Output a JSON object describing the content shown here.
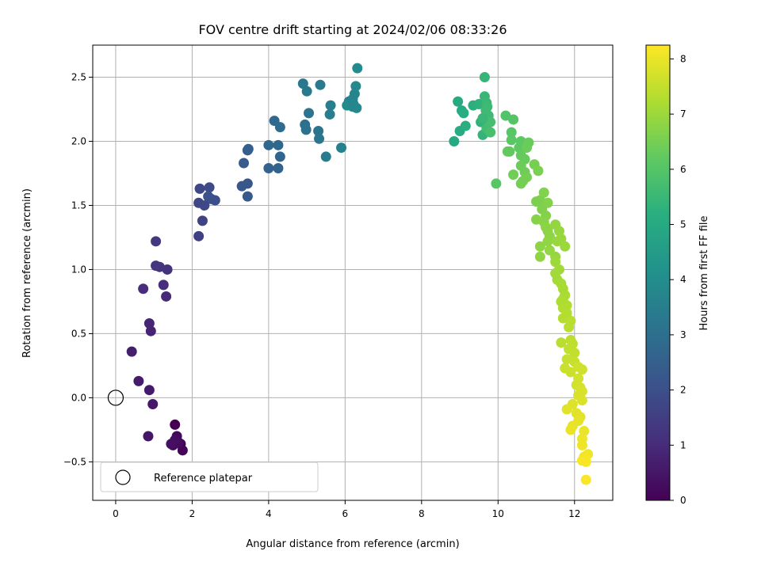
{
  "chart_data": {
    "type": "scatter",
    "title": "FOV centre drift starting at 2024/02/06 08:33:26",
    "xlabel": "Angular distance from reference (arcmin)",
    "ylabel": "Rotation from reference (arcmin)",
    "xlim": [
      -0.6,
      13.0
    ],
    "ylim": [
      -0.8,
      2.75
    ],
    "xticks": [
      0,
      2,
      4,
      6,
      8,
      10,
      12
    ],
    "yticks": [
      -0.5,
      0.0,
      0.5,
      1.0,
      1.5,
      2.0,
      2.5
    ],
    "xtick_labels": [
      "0",
      "2",
      "4",
      "6",
      "8",
      "10",
      "12"
    ],
    "ytick_labels": [
      "−0.5",
      "0.0",
      "0.5",
      "1.0",
      "1.5",
      "2.0",
      "2.5"
    ],
    "grid": true,
    "colormap": "viridis",
    "colorbar": {
      "label": "Hours from first FF file",
      "range": [
        0,
        8.25
      ],
      "ticks": [
        0,
        1,
        2,
        3,
        4,
        5,
        6,
        7,
        8
      ],
      "tick_labels": [
        "0",
        "1",
        "2",
        "3",
        "4",
        "5",
        "6",
        "7",
        "8"
      ]
    },
    "reference": {
      "name": "Reference platepar",
      "x": 0,
      "y": 0
    },
    "legend": {
      "position": "lower-left",
      "entries": [
        "Reference platepar"
      ]
    },
    "points": [
      [
        1.55,
        -0.21,
        0.0
      ],
      [
        1.7,
        -0.36,
        0.05
      ],
      [
        1.75,
        -0.41,
        0.1
      ],
      [
        1.5,
        -0.37,
        0.15
      ],
      [
        1.6,
        -0.3,
        0.2
      ],
      [
        1.65,
        -0.35,
        0.25
      ],
      [
        1.55,
        -0.33,
        0.3
      ],
      [
        1.45,
        -0.36,
        0.35
      ],
      [
        0.85,
        -0.3,
        0.5
      ],
      [
        0.97,
        -0.05,
        0.55
      ],
      [
        0.88,
        0.06,
        0.6
      ],
      [
        0.6,
        0.13,
        0.65
      ],
      [
        0.42,
        0.36,
        0.7
      ],
      [
        0.92,
        0.52,
        0.85
      ],
      [
        0.88,
        0.58,
        0.9
      ],
      [
        1.32,
        0.79,
        1.0
      ],
      [
        0.72,
        0.85,
        1.05
      ],
      [
        1.25,
        0.88,
        1.1
      ],
      [
        1.35,
        1.0,
        1.2
      ],
      [
        1.15,
        1.02,
        1.25
      ],
      [
        1.05,
        1.03,
        1.3
      ],
      [
        1.05,
        1.22,
        1.4
      ],
      [
        2.17,
        1.26,
        1.55
      ],
      [
        2.27,
        1.38,
        1.65
      ],
      [
        2.17,
        1.52,
        1.75
      ],
      [
        2.32,
        1.5,
        1.8
      ],
      [
        2.2,
        1.63,
        1.85
      ],
      [
        2.45,
        1.64,
        1.9
      ],
      [
        2.5,
        1.55,
        1.95
      ],
      [
        2.6,
        1.54,
        2.0
      ],
      [
        2.42,
        1.57,
        2.05
      ],
      [
        3.3,
        1.65,
        2.25
      ],
      [
        3.45,
        1.67,
        2.3
      ],
      [
        3.45,
        1.57,
        2.35
      ],
      [
        3.35,
        1.83,
        2.4
      ],
      [
        3.45,
        1.93,
        2.45
      ],
      [
        3.47,
        1.94,
        2.5
      ],
      [
        4.0,
        1.79,
        2.6
      ],
      [
        4.25,
        1.79,
        2.65
      ],
      [
        4.3,
        1.88,
        2.7
      ],
      [
        4.0,
        1.97,
        2.75
      ],
      [
        4.25,
        1.97,
        2.8
      ],
      [
        4.15,
        2.16,
        2.85
      ],
      [
        4.3,
        2.11,
        2.9
      ],
      [
        4.95,
        2.13,
        3.05
      ],
      [
        4.98,
        2.09,
        3.1
      ],
      [
        5.05,
        2.22,
        3.15
      ],
      [
        5.3,
        2.08,
        3.2
      ],
      [
        5.32,
        2.02,
        3.25
      ],
      [
        4.9,
        2.45,
        3.3
      ],
      [
        5.0,
        2.39,
        3.35
      ],
      [
        5.35,
        2.44,
        3.4
      ],
      [
        5.5,
        1.88,
        3.45
      ],
      [
        5.6,
        2.21,
        3.5
      ],
      [
        5.62,
        2.28,
        3.55
      ],
      [
        5.9,
        1.95,
        3.6
      ],
      [
        6.1,
        2.31,
        3.65
      ],
      [
        6.15,
        2.3,
        3.7
      ],
      [
        6.2,
        2.27,
        3.75
      ],
      [
        6.25,
        2.37,
        3.8
      ],
      [
        6.3,
        2.26,
        3.85
      ],
      [
        6.28,
        2.43,
        3.9
      ],
      [
        6.32,
        2.57,
        3.95
      ],
      [
        6.05,
        2.28,
        4.0
      ],
      [
        6.2,
        2.33,
        3.72
      ],
      [
        6.22,
        2.29,
        3.78
      ],
      [
        8.85,
        2.0,
        5.0
      ],
      [
        8.95,
        2.31,
        5.05
      ],
      [
        9.0,
        2.08,
        5.1
      ],
      [
        9.05,
        2.24,
        5.12
      ],
      [
        9.1,
        2.22,
        5.15
      ],
      [
        9.15,
        2.12,
        5.2
      ],
      [
        9.35,
        2.28,
        5.25
      ],
      [
        9.5,
        2.29,
        5.3
      ],
      [
        9.55,
        2.15,
        5.35
      ],
      [
        9.6,
        2.05,
        5.4
      ],
      [
        9.65,
        2.5,
        5.45
      ],
      [
        9.65,
        2.35,
        5.5
      ],
      [
        9.7,
        2.3,
        5.55
      ],
      [
        9.72,
        2.27,
        5.6
      ],
      [
        9.75,
        2.2,
        5.65
      ],
      [
        9.7,
        2.1,
        5.7
      ],
      [
        9.8,
        2.15,
        5.75
      ],
      [
        9.8,
        2.07,
        5.8
      ],
      [
        9.68,
        2.24,
        5.62
      ],
      [
        9.6,
        2.18,
        5.52
      ],
      [
        10.2,
        2.2,
        6.0
      ],
      [
        10.4,
        2.17,
        6.05
      ],
      [
        10.35,
        2.07,
        6.1
      ],
      [
        10.35,
        2.01,
        6.15
      ],
      [
        10.6,
        2.0,
        6.18
      ],
      [
        10.55,
        1.95,
        6.2
      ],
      [
        10.3,
        1.92,
        6.22
      ],
      [
        10.25,
        1.92,
        6.25
      ],
      [
        10.6,
        1.89,
        6.3
      ],
      [
        10.7,
        1.86,
        6.32
      ],
      [
        10.8,
        1.99,
        6.35
      ],
      [
        10.75,
        1.95,
        6.38
      ],
      [
        10.6,
        1.81,
        6.4
      ],
      [
        10.7,
        1.76,
        6.42
      ],
      [
        10.4,
        1.74,
        6.45
      ],
      [
        10.65,
        1.69,
        6.48
      ],
      [
        10.6,
        1.67,
        6.5
      ],
      [
        10.75,
        1.72,
        6.52
      ],
      [
        9.95,
        1.67,
        6.12
      ],
      [
        10.95,
        1.82,
        6.55
      ],
      [
        11.05,
        1.77,
        6.58
      ],
      [
        11.0,
        1.53,
        6.6
      ],
      [
        11.1,
        1.54,
        6.62
      ],
      [
        11.15,
        1.47,
        6.65
      ],
      [
        11.2,
        1.6,
        6.68
      ],
      [
        11.3,
        1.52,
        6.7
      ],
      [
        11.25,
        1.42,
        6.72
      ],
      [
        11.0,
        1.39,
        6.75
      ],
      [
        11.2,
        1.37,
        6.78
      ],
      [
        11.25,
        1.33,
        6.8
      ],
      [
        11.3,
        1.3,
        6.82
      ],
      [
        11.35,
        1.26,
        6.85
      ],
      [
        11.3,
        1.22,
        6.88
      ],
      [
        11.35,
        1.15,
        6.9
      ],
      [
        11.5,
        1.35,
        6.92
      ],
      [
        11.6,
        1.3,
        6.95
      ],
      [
        11.55,
        1.22,
        6.98
      ],
      [
        11.65,
        1.24,
        7.0
      ],
      [
        11.75,
        1.18,
        7.02
      ],
      [
        11.1,
        1.18,
        6.84
      ],
      [
        11.1,
        1.1,
        6.86
      ],
      [
        11.5,
        1.1,
        6.96
      ],
      [
        11.5,
        1.06,
        7.05
      ],
      [
        11.5,
        0.97,
        7.08
      ],
      [
        11.6,
        1.0,
        7.1
      ],
      [
        11.55,
        0.92,
        7.12
      ],
      [
        11.65,
        0.89,
        7.15
      ],
      [
        11.7,
        0.85,
        7.18
      ],
      [
        11.75,
        0.8,
        7.2
      ],
      [
        11.7,
        0.77,
        7.22
      ],
      [
        11.65,
        0.75,
        7.25
      ],
      [
        11.8,
        0.72,
        7.28
      ],
      [
        11.7,
        0.7,
        7.3
      ],
      [
        11.8,
        0.66,
        7.32
      ],
      [
        11.7,
        0.62,
        7.35
      ],
      [
        11.9,
        0.6,
        7.38
      ],
      [
        11.85,
        0.55,
        7.4
      ],
      [
        11.65,
        0.43,
        7.42
      ],
      [
        11.9,
        0.45,
        7.45
      ],
      [
        11.95,
        0.42,
        7.48
      ],
      [
        11.85,
        0.38,
        7.5
      ],
      [
        12.0,
        0.35,
        7.52
      ],
      [
        11.8,
        0.3,
        7.55
      ],
      [
        12.0,
        0.28,
        7.58
      ],
      [
        11.75,
        0.23,
        7.6
      ],
      [
        11.9,
        0.2,
        7.62
      ],
      [
        12.1,
        0.24,
        7.65
      ],
      [
        12.2,
        0.22,
        7.68
      ],
      [
        12.1,
        0.15,
        7.7
      ],
      [
        12.05,
        0.1,
        7.72
      ],
      [
        12.15,
        0.08,
        7.75
      ],
      [
        12.2,
        0.05,
        7.78
      ],
      [
        12.1,
        0.02,
        7.8
      ],
      [
        12.2,
        -0.02,
        7.82
      ],
      [
        11.95,
        -0.05,
        7.85
      ],
      [
        11.8,
        -0.09,
        7.88
      ],
      [
        12.05,
        -0.12,
        7.9
      ],
      [
        12.15,
        -0.15,
        7.92
      ],
      [
        12.1,
        -0.18,
        7.95
      ],
      [
        11.95,
        -0.22,
        7.98
      ],
      [
        11.9,
        -0.25,
        8.0
      ],
      [
        12.25,
        -0.26,
        8.02
      ],
      [
        12.2,
        -0.32,
        8.05
      ],
      [
        12.2,
        -0.37,
        8.08
      ],
      [
        12.35,
        -0.44,
        8.1
      ],
      [
        12.25,
        -0.46,
        8.12
      ],
      [
        12.2,
        -0.49,
        8.15
      ],
      [
        12.3,
        -0.5,
        8.18
      ],
      [
        12.3,
        -0.64,
        8.2
      ]
    ]
  }
}
